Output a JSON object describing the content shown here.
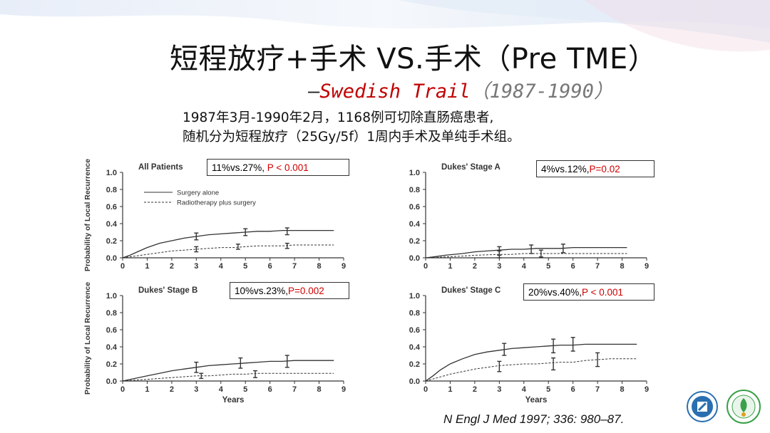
{
  "slide": {
    "title": "短程放疗+手术 VS.手术（Pre TME）",
    "subtitle_dash": "—",
    "subtitle_name": "Swedish Trail",
    "subtitle_years": "（1987-1990）",
    "desc_line1": "1987年3月-1990年2月，1168例可切除直肠癌患者,",
    "desc_line2": "随机分为短程放疗（25Gy/5f）1周内手术及单纯手术组。",
    "citation": "N Engl J Med 1997; 336: 980–87."
  },
  "annotations": [
    {
      "text": "11%vs.27%, ",
      "p": "P < 0.001"
    },
    {
      "text": "4%vs.12%,",
      "p": "P=0.02"
    },
    {
      "text": "10%vs.23%,",
      "p": "P=0.002"
    },
    {
      "text": "20%vs.40%,",
      "p": "P < 0.001"
    }
  ],
  "colors": {
    "annotation_p": "#d00000",
    "subtitle_name": "#c00000",
    "curve": "#333333"
  },
  "chart_data": [
    {
      "type": "line",
      "title": "All Patients",
      "xlabel": "",
      "ylabel": "Probability of Local Recurrence",
      "xlim": [
        0,
        9
      ],
      "ylim": [
        0,
        1.0
      ],
      "xticks": [
        "0",
        "1",
        "2",
        "3",
        "4",
        "5",
        "6",
        "7",
        "8",
        "9"
      ],
      "yticks": [
        "0.0",
        "0.2",
        "0.4",
        "0.6",
        "0.8",
        "1.0"
      ],
      "legend": [
        {
          "name": "Surgery alone",
          "style": "solid"
        },
        {
          "name": "Radiotherapy plus surgery",
          "style": "dashed"
        }
      ],
      "series": [
        {
          "name": "Surgery alone",
          "style": "solid",
          "x": [
            0,
            0.3,
            0.6,
            1,
            1.5,
            2,
            2.5,
            3,
            3.5,
            4,
            4.5,
            5,
            5.5,
            6,
            6.5,
            7,
            7.5,
            8,
            8.6
          ],
          "y": [
            0,
            0.03,
            0.07,
            0.12,
            0.17,
            0.2,
            0.23,
            0.25,
            0.27,
            0.28,
            0.29,
            0.3,
            0.31,
            0.31,
            0.32,
            0.32,
            0.32,
            0.32,
            0.32
          ],
          "err_x": [
            3,
            5,
            6.7
          ],
          "err_y": [
            0.25,
            0.3,
            0.31
          ],
          "err_h": [
            0.04,
            0.04,
            0.04
          ]
        },
        {
          "name": "Radiotherapy plus surgery",
          "style": "dashed",
          "x": [
            0,
            0.5,
            1,
            1.5,
            2,
            2.5,
            3,
            3.5,
            4,
            4.5,
            5,
            5.5,
            6,
            6.5,
            7,
            7.5,
            8,
            8.6
          ],
          "y": [
            0,
            0.02,
            0.04,
            0.06,
            0.08,
            0.09,
            0.1,
            0.11,
            0.12,
            0.12,
            0.13,
            0.14,
            0.14,
            0.14,
            0.15,
            0.15,
            0.15,
            0.15
          ],
          "err_x": [
            3,
            4.7,
            6.7
          ],
          "err_y": [
            0.1,
            0.13,
            0.14
          ],
          "err_h": [
            0.03,
            0.03,
            0.03
          ]
        }
      ]
    },
    {
      "type": "line",
      "title": "Dukes' Stage A",
      "xlabel": "",
      "ylabel": "",
      "xlim": [
        0,
        9
      ],
      "ylim": [
        0,
        1.0
      ],
      "xticks": [
        "0",
        "1",
        "2",
        "3",
        "4",
        "5",
        "6",
        "7",
        "8",
        "9"
      ],
      "yticks": [
        "0.0",
        "0.2",
        "0.4",
        "0.6",
        "0.8",
        "1.0"
      ],
      "series": [
        {
          "name": "Surgery alone",
          "style": "solid",
          "x": [
            0,
            0.3,
            0.8,
            1.5,
            2,
            2.5,
            3,
            3.5,
            4,
            4.5,
            5,
            5.5,
            6,
            7,
            8.2
          ],
          "y": [
            0,
            0.01,
            0.03,
            0.05,
            0.07,
            0.08,
            0.09,
            0.1,
            0.1,
            0.11,
            0.11,
            0.11,
            0.12,
            0.12,
            0.12
          ],
          "err_x": [
            3,
            4.3,
            5.6
          ],
          "err_y": [
            0.08,
            0.1,
            0.11
          ],
          "err_h": [
            0.05,
            0.05,
            0.05
          ]
        },
        {
          "name": "Radiotherapy plus surgery",
          "style": "dashed",
          "x": [
            0,
            0.8,
            1.5,
            2,
            3,
            3.5,
            4,
            4.7,
            5.5,
            6.5,
            8.2
          ],
          "y": [
            0,
            0.01,
            0.02,
            0.03,
            0.04,
            0.04,
            0.05,
            0.05,
            0.05,
            0.05,
            0.05
          ],
          "err_x": [
            3,
            4.7
          ],
          "err_y": [
            0.04,
            0.05
          ],
          "err_h": [
            0.04,
            0.04
          ]
        }
      ]
    },
    {
      "type": "line",
      "title": "Dukes' Stage B",
      "xlabel": "Years",
      "ylabel": "Probability of Local Recurrence",
      "xlim": [
        0,
        9
      ],
      "ylim": [
        0,
        1.0
      ],
      "xticks": [
        "0",
        "1",
        "2",
        "3",
        "4",
        "5",
        "6",
        "7",
        "8",
        "9"
      ],
      "yticks": [
        "0.0",
        "0.2",
        "0.4",
        "0.6",
        "0.8",
        "1.0"
      ],
      "series": [
        {
          "name": "Surgery alone",
          "style": "solid",
          "x": [
            0,
            0.5,
            1,
            1.5,
            2,
            2.5,
            3,
            3.5,
            4,
            4.5,
            5,
            5.5,
            6,
            6.5,
            7,
            8,
            8.6
          ],
          "y": [
            0,
            0.03,
            0.06,
            0.09,
            0.12,
            0.14,
            0.16,
            0.18,
            0.19,
            0.2,
            0.21,
            0.22,
            0.23,
            0.23,
            0.24,
            0.24,
            0.24
          ],
          "err_x": [
            3,
            4.8,
            6.7
          ],
          "err_y": [
            0.16,
            0.21,
            0.23
          ],
          "err_h": [
            0.06,
            0.06,
            0.07
          ]
        },
        {
          "name": "Radiotherapy plus surgery",
          "style": "dashed",
          "x": [
            0,
            0.5,
            1,
            1.5,
            2,
            2.5,
            3,
            3.5,
            4,
            4.5,
            5,
            5.5,
            6,
            7,
            8.6
          ],
          "y": [
            0,
            0.01,
            0.02,
            0.03,
            0.04,
            0.05,
            0.06,
            0.06,
            0.07,
            0.08,
            0.08,
            0.09,
            0.09,
            0.09,
            0.09
          ],
          "err_x": [
            3.2,
            5.4
          ],
          "err_y": [
            0.06,
            0.08
          ],
          "err_h": [
            0.03,
            0.04
          ]
        }
      ]
    },
    {
      "type": "line",
      "title": "Dukes' Stage C",
      "xlabel": "Years",
      "ylabel": "",
      "xlim": [
        0,
        9
      ],
      "ylim": [
        0,
        1.0
      ],
      "xticks": [
        "0",
        "1",
        "2",
        "3",
        "4",
        "5",
        "6",
        "7",
        "8",
        "9"
      ],
      "yticks": [
        "0.0",
        "0.2",
        "0.4",
        "0.6",
        "0.8",
        "1.0"
      ],
      "series": [
        {
          "name": "Surgery alone",
          "style": "solid",
          "x": [
            0,
            0.3,
            0.6,
            1,
            1.5,
            2,
            2.5,
            3,
            3.5,
            4,
            4.5,
            5,
            5.5,
            6,
            6.5,
            7,
            7.5,
            8,
            8.6
          ],
          "y": [
            0,
            0.06,
            0.13,
            0.2,
            0.26,
            0.31,
            0.34,
            0.36,
            0.38,
            0.39,
            0.4,
            0.41,
            0.42,
            0.42,
            0.43,
            0.43,
            0.43,
            0.43,
            0.43
          ],
          "err_x": [
            3.2,
            5.2,
            6
          ],
          "err_y": [
            0.37,
            0.41,
            0.43
          ],
          "err_h": [
            0.07,
            0.08,
            0.08
          ]
        },
        {
          "name": "Radiotherapy plus surgery",
          "style": "dashed",
          "x": [
            0,
            0.5,
            1,
            1.5,
            2,
            2.5,
            3,
            3.5,
            4,
            4.5,
            5,
            5.5,
            6,
            6.5,
            7,
            7.5,
            8,
            8.6
          ],
          "y": [
            0,
            0.04,
            0.08,
            0.11,
            0.14,
            0.16,
            0.18,
            0.19,
            0.2,
            0.2,
            0.21,
            0.22,
            0.22,
            0.24,
            0.25,
            0.26,
            0.26,
            0.26
          ],
          "err_x": [
            3,
            5.2,
            7
          ],
          "err_y": [
            0.17,
            0.2,
            0.25
          ],
          "err_h": [
            0.06,
            0.07,
            0.08
          ]
        }
      ]
    }
  ]
}
